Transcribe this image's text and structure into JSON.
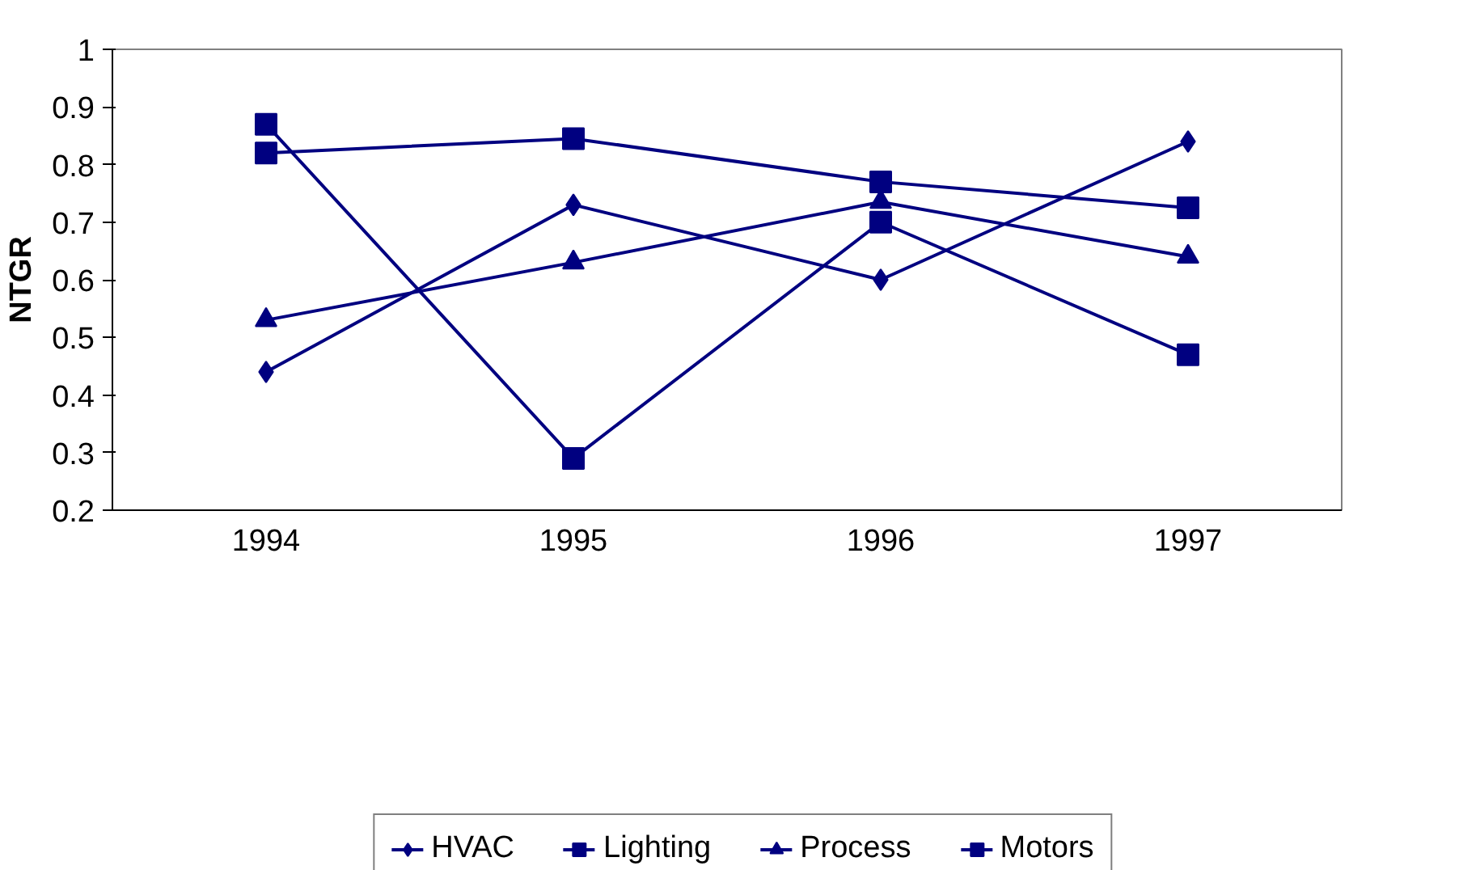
{
  "chart_data": {
    "type": "line",
    "ylabel": "NTGR",
    "categories": [
      "1994",
      "1995",
      "1996",
      "1997"
    ],
    "series": [
      {
        "name": "HVAC",
        "color": "#000080",
        "marker": "diamond",
        "values": [
          0.44,
          0.73,
          0.6,
          0.84
        ]
      },
      {
        "name": "Lighting",
        "color": "#000080",
        "marker": "square",
        "values": [
          0.82,
          0.845,
          0.77,
          0.725
        ]
      },
      {
        "name": "Process",
        "color": "#000080",
        "marker": "triangle",
        "values": [
          0.53,
          0.63,
          0.735,
          0.64
        ]
      },
      {
        "name": "Motors",
        "color": "#000080",
        "marker": "square",
        "values": [
          0.87,
          0.29,
          0.7,
          0.47
        ]
      }
    ],
    "ylim": [
      0.2,
      1
    ],
    "yticks": [
      0.2,
      0.3,
      0.4,
      0.5,
      0.6,
      0.7,
      0.8,
      0.9,
      1
    ],
    "grid": false,
    "legend": "bottom",
    "line_style": "solid"
  }
}
